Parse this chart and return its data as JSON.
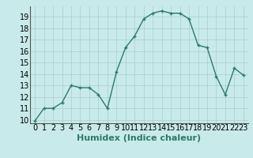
{
  "title": "",
  "xlabel": "Humidex (Indice chaleur)",
  "ylabel": "",
  "x": [
    0,
    1,
    2,
    3,
    4,
    5,
    6,
    7,
    8,
    9,
    10,
    11,
    12,
    13,
    14,
    15,
    16,
    17,
    18,
    19,
    20,
    21,
    22,
    23
  ],
  "y": [
    9.9,
    11.0,
    11.0,
    11.5,
    13.0,
    12.8,
    12.8,
    12.2,
    11.0,
    14.2,
    16.3,
    17.3,
    18.8,
    19.3,
    19.5,
    19.3,
    19.3,
    18.8,
    16.5,
    16.3,
    13.8,
    12.2,
    14.5,
    13.9
  ],
  "line_color": "#2d7a6a",
  "marker": "+",
  "bg_color": "#c8eaea",
  "grid_color": "#a8cece",
  "ylim": [
    9.7,
    19.9
  ],
  "xlim": [
    -0.5,
    23.5
  ],
  "yticks": [
    10,
    11,
    12,
    13,
    14,
    15,
    16,
    17,
    18,
    19
  ],
  "xticks": [
    0,
    1,
    2,
    3,
    4,
    5,
    6,
    7,
    8,
    9,
    10,
    11,
    12,
    13,
    14,
    15,
    16,
    17,
    18,
    19,
    20,
    21,
    22,
    23
  ],
  "tick_fontsize": 7,
  "xlabel_fontsize": 8,
  "marker_size": 3,
  "linewidth": 1.0
}
